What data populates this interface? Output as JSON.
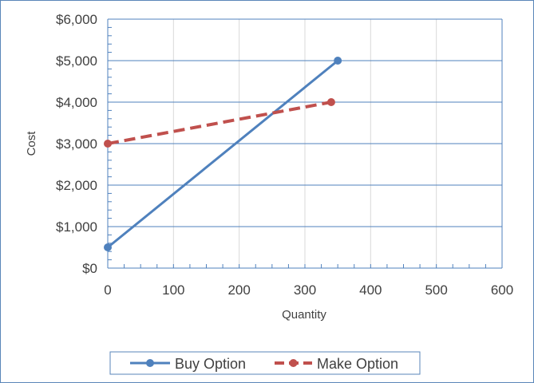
{
  "chart_data": {
    "type": "line",
    "xlabel": "Quantity",
    "ylabel": "Cost",
    "xlim": [
      0,
      600
    ],
    "ylim": [
      0,
      6000
    ],
    "x_ticks": [
      0,
      100,
      200,
      300,
      400,
      500,
      600
    ],
    "y_ticks": [
      0,
      1000,
      2000,
      3000,
      4000,
      5000,
      6000
    ],
    "x_tick_labels": [
      "0",
      "100",
      "200",
      "300",
      "400",
      "500",
      "600"
    ],
    "y_tick_labels": [
      "$0",
      "$1,000",
      "$2,000",
      "$3,000",
      "$4,000",
      "$5,000",
      "$6,000"
    ],
    "grid": true,
    "legend_position": "bottom",
    "series": [
      {
        "name": "Buy Option",
        "color": "#4f81bd",
        "style": "solid",
        "x": [
          0,
          350
        ],
        "y": [
          500,
          5000
        ]
      },
      {
        "name": "Make Option",
        "color": "#c0504d",
        "style": "dashed",
        "x": [
          0,
          340
        ],
        "y": [
          3000,
          4000
        ]
      }
    ]
  }
}
